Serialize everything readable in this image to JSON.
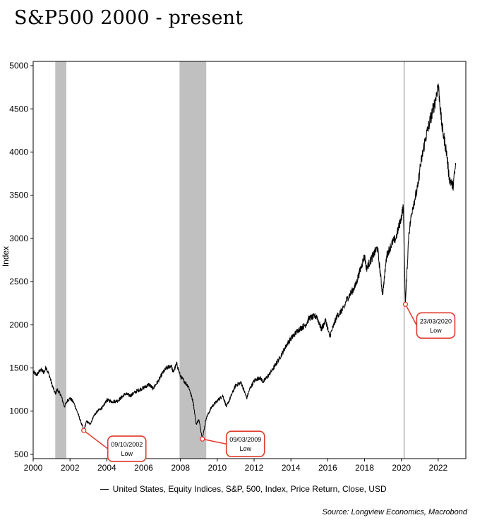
{
  "title": "S&P500 2000 - present",
  "chart_data": {
    "type": "line",
    "title": "S&P500 2000 - present",
    "xlabel": "",
    "ylabel": "Index",
    "xlim": [
      2000,
      2023.5
    ],
    "ylim": [
      450,
      5050
    ],
    "x_ticks": [
      2000,
      2002,
      2004,
      2006,
      2008,
      2010,
      2012,
      2014,
      2016,
      2018,
      2020,
      2022
    ],
    "y_ticks": [
      500,
      1000,
      1500,
      2000,
      2500,
      3000,
      3500,
      4000,
      4500,
      5000
    ],
    "recessions": [
      {
        "start": 2001.2,
        "end": 2001.8
      },
      {
        "start": 2007.95,
        "end": 2009.4
      }
    ],
    "vline": 2020.15,
    "series": [
      {
        "name": "United States, Equity Indices, S&P, 500, Index, Price Return, Close, USD",
        "color": "#000000",
        "x": [
          2000.0,
          2000.2,
          2000.4,
          2000.6,
          2000.7,
          2000.9,
          2001.0,
          2001.2,
          2001.3,
          2001.5,
          2001.7,
          2001.85,
          2002.0,
          2002.2,
          2002.4,
          2002.55,
          2002.75,
          2002.9,
          2003.1,
          2003.3,
          2003.5,
          2003.8,
          2004.0,
          2004.3,
          2004.6,
          2005.0,
          2005.3,
          2005.6,
          2006.0,
          2006.3,
          2006.5,
          2006.8,
          2007.0,
          2007.2,
          2007.5,
          2007.6,
          2007.8,
          2008.0,
          2008.2,
          2008.45,
          2008.7,
          2008.85,
          2009.0,
          2009.19,
          2009.4,
          2009.7,
          2010.0,
          2010.3,
          2010.5,
          2010.8,
          2011.0,
          2011.3,
          2011.6,
          2011.75,
          2012.0,
          2012.3,
          2012.5,
          2012.8,
          2013.0,
          2013.4,
          2013.8,
          2014.0,
          2014.4,
          2014.8,
          2015.0,
          2015.4,
          2015.65,
          2015.9,
          2016.1,
          2016.5,
          2016.9,
          2017.0,
          2017.5,
          2018.0,
          2018.1,
          2018.7,
          2018.98,
          2019.2,
          2019.5,
          2019.7,
          2020.0,
          2020.1,
          2020.22,
          2020.4,
          2020.6,
          2020.9,
          2021.0,
          2021.3,
          2021.6,
          2021.85,
          2022.0,
          2022.2,
          2022.45,
          2022.6,
          2022.8,
          2022.95
        ],
        "y": [
          1450,
          1420,
          1480,
          1450,
          1510,
          1400,
          1320,
          1200,
          1250,
          1190,
          1050,
          1120,
          1150,
          1100,
          990,
          900,
          780,
          880,
          850,
          950,
          1000,
          1050,
          1130,
          1110,
          1120,
          1200,
          1180,
          1230,
          1270,
          1310,
          1260,
          1350,
          1430,
          1490,
          1530,
          1450,
          1550,
          1400,
          1350,
          1280,
          1100,
          850,
          900,
          680,
          920,
          1050,
          1120,
          1180,
          1050,
          1200,
          1300,
          1330,
          1150,
          1250,
          1350,
          1390,
          1340,
          1420,
          1480,
          1620,
          1780,
          1840,
          1940,
          2000,
          2080,
          2100,
          1950,
          2050,
          1860,
          2100,
          2200,
          2280,
          2450,
          2800,
          2650,
          2900,
          2350,
          2800,
          2950,
          3000,
          3250,
          3380,
          2237,
          3050,
          3350,
          3600,
          3800,
          4150,
          4400,
          4600,
          4790,
          4300,
          4000,
          3700,
          3600,
          3850
        ]
      }
    ],
    "annotations": [
      {
        "x": 2002.75,
        "y": 776,
        "date": "09/10/2002",
        "text": "Low"
      },
      {
        "x": 2009.19,
        "y": 677,
        "date": "09/03/2009",
        "text": "Low"
      },
      {
        "x": 2020.22,
        "y": 2237,
        "date": "23/03/2020",
        "text": "Low"
      }
    ],
    "legend": "United States, Equity Indices, S&P, 500, Index, Price Return, Close, USD",
    "legend_position": "bottom",
    "source": "Source: Longview Economics, Macrobond"
  }
}
